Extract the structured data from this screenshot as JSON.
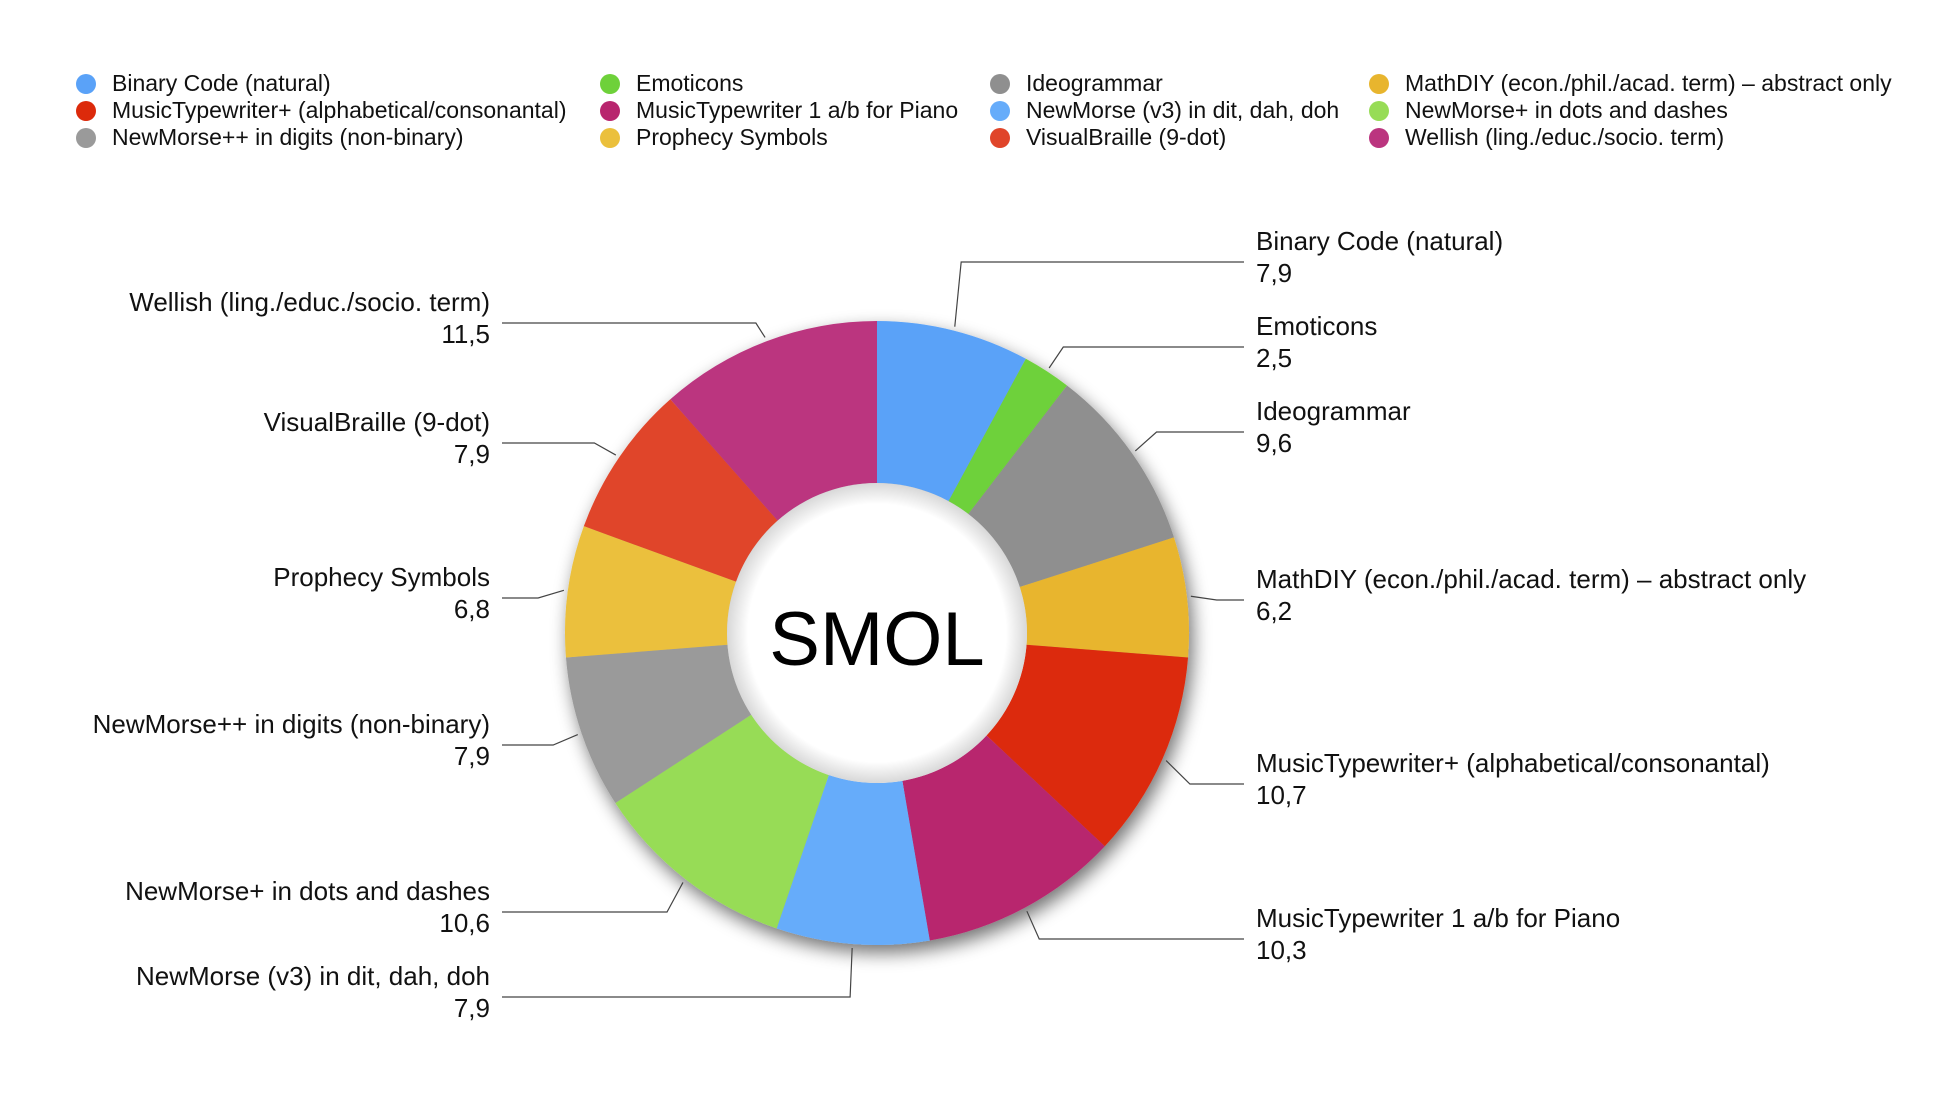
{
  "chart_data": {
    "type": "pie",
    "style": "donut",
    "center_label": "SMOL",
    "legend_position": "top",
    "slices": [
      {
        "label": "Binary Code (natural)",
        "value_label": "7,9",
        "value": 7.9,
        "color": "#5aa2f8"
      },
      {
        "label": "Emoticons",
        "value_label": "2,5",
        "value": 2.5,
        "color": "#6ed13a"
      },
      {
        "label": "Ideogrammar",
        "value_label": "9,6",
        "value": 9.6,
        "color": "#8f8f8f"
      },
      {
        "label": "MathDIY (econ./phil./acad. term) – abstract only",
        "value_label": "6,2",
        "value": 6.2,
        "color": "#e8b52e"
      },
      {
        "label": "MusicTypewriter+ (alphabetical/consonantal)",
        "value_label": "10,7",
        "value": 10.7,
        "color": "#dc2a0b"
      },
      {
        "label": "MusicTypewriter 1 a/b for Piano",
        "value_label": "10,3",
        "value": 10.3,
        "color": "#b8266e"
      },
      {
        "label": "NewMorse (v3) in dit, dah, doh",
        "value_label": "7,9",
        "value": 7.9,
        "color": "#66acfa"
      },
      {
        "label": "NewMorse+ in dots and dashes",
        "value_label": "10,6",
        "value": 10.6,
        "color": "#97dc56"
      },
      {
        "label": "NewMorse++ in digits (non-binary)",
        "value_label": "7,9",
        "value": 7.9,
        "color": "#9a9a9a"
      },
      {
        "label": "Prophecy Symbols",
        "value_label": "6,8",
        "value": 6.8,
        "color": "#ebc03c"
      },
      {
        "label": "VisualBraille (9-dot)",
        "value_label": "7,9",
        "value": 7.9,
        "color": "#e0452a"
      },
      {
        "label": "Wellish (ling./educ./socio. term)",
        "value_label": "11,5",
        "value": 11.5,
        "color": "#bb357f"
      }
    ]
  },
  "legend": {
    "items": [
      {
        "label": "Binary Code (natural)",
        "color": "#5aa2f8"
      },
      {
        "label": "Emoticons",
        "color": "#6ed13a"
      },
      {
        "label": "Ideogrammar",
        "color": "#8f8f8f"
      },
      {
        "label": "MathDIY (econ./phil./acad. term) – abstract only",
        "color": "#e8b52e"
      },
      {
        "label": "MusicTypewriter+ (alphabetical/consonantal)",
        "color": "#dc2a0b"
      },
      {
        "label": "MusicTypewriter 1 a/b for Piano",
        "color": "#b8266e"
      },
      {
        "label": "NewMorse (v3) in dit, dah, doh",
        "color": "#66acfa"
      },
      {
        "label": "NewMorse+ in dots and dashes",
        "color": "#97dc56"
      },
      {
        "label": "NewMorse++ in digits (non-binary)",
        "color": "#9a9a9a"
      },
      {
        "label": "Prophecy Symbols",
        "color": "#ebc03c"
      },
      {
        "label": "VisualBraille (9-dot)",
        "color": "#e0452a"
      },
      {
        "label": "Wellish (ling./educ./socio. term)",
        "color": "#bb357f"
      }
    ]
  }
}
